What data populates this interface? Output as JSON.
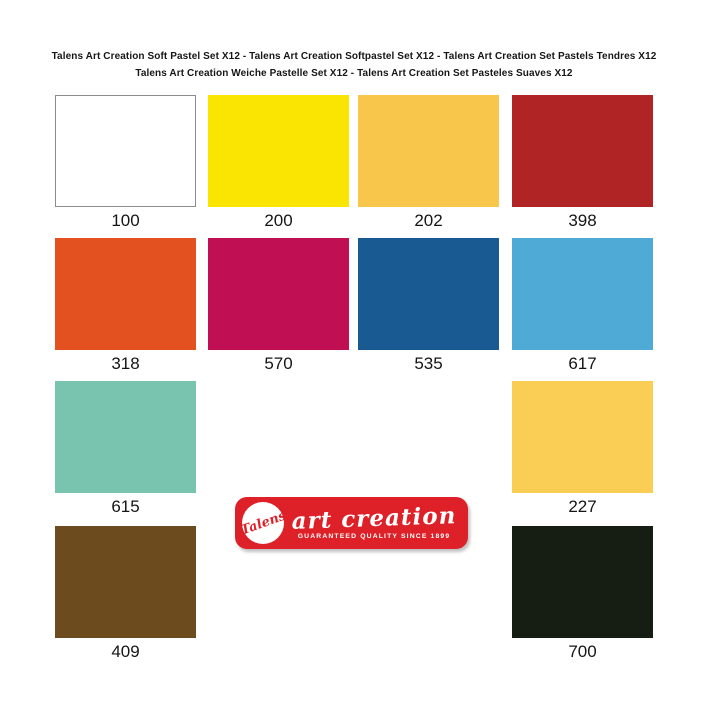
{
  "header": {
    "line1": "Talens Art Creation Soft Pastel Set X12 - Talens Art Creation Softpastel Set X12 - Talens Art Creation Set Pastels Tendres X12",
    "line2": "Talens Art Creation Weiche Pastelle Set X12 - Talens Art Creation Set Pasteles Suaves X12"
  },
  "logo": {
    "brand": "Talens",
    "wordmark": "art creation",
    "tagline": "GUARANTEED QUALITY SINCE 1899",
    "background_color": "#DE2128",
    "text_color": "#FFFFFF"
  },
  "swatches": [
    {
      "code": "100",
      "color": "#FFFFFF",
      "border": "#8C8C8C",
      "row": 0,
      "col": 0
    },
    {
      "code": "200",
      "color": "#FAE502",
      "row": 0,
      "col": 1
    },
    {
      "code": "202",
      "color": "#F8C64A",
      "row": 0,
      "col": 2
    },
    {
      "code": "398",
      "color": "#B02426",
      "row": 0,
      "col": 3
    },
    {
      "code": "318",
      "color": "#E35120",
      "row": 1,
      "col": 0
    },
    {
      "code": "570",
      "color": "#C00F53",
      "row": 1,
      "col": 1
    },
    {
      "code": "535",
      "color": "#1A5A93",
      "row": 1,
      "col": 2
    },
    {
      "code": "617",
      "color": "#4FAAD5",
      "row": 1,
      "col": 3
    },
    {
      "code": "615",
      "color": "#78C4AE",
      "row": 2,
      "col": 0
    },
    {
      "code": "227",
      "color": "#FACD55",
      "row": 2,
      "col": 3
    },
    {
      "code": "409",
      "color": "#6C4B1E",
      "row": 3,
      "col": 0
    },
    {
      "code": "700",
      "color": "#161E13",
      "row": 3,
      "col": 3
    }
  ]
}
